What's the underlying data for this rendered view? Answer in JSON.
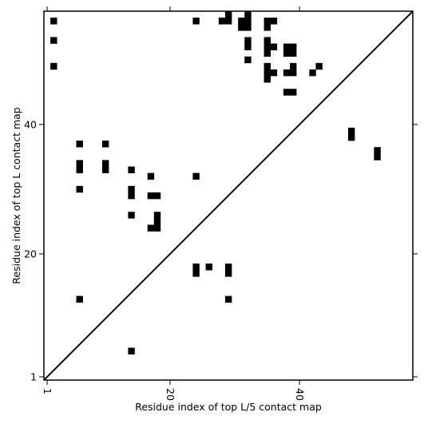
{
  "chart_data": {
    "type": "heatmap",
    "subtype": "contact-map",
    "xlabel": "Residue index of top L/5 contact map",
    "ylabel": "Residue index of top L contact map",
    "xlim": [
      0.5,
      57.5
    ],
    "ylim": [
      0.5,
      57.5
    ],
    "xticks": [
      1,
      20,
      40
    ],
    "yticks": [
      1,
      20,
      40
    ],
    "diagonal": true,
    "grid": false,
    "legend": "none",
    "cell_color": "#000000",
    "upper_triangle_contacts": [
      [
        24,
        56
      ],
      [
        28,
        56
      ],
      [
        29,
        56
      ],
      [
        29,
        57
      ],
      [
        31,
        55
      ],
      [
        31,
        56
      ],
      [
        32,
        55
      ],
      [
        32,
        56
      ],
      [
        32,
        57
      ],
      [
        35,
        55
      ],
      [
        35,
        56
      ],
      [
        36,
        56
      ],
      [
        32,
        52
      ],
      [
        32,
        53
      ],
      [
        35,
        51
      ],
      [
        35,
        52
      ],
      [
        35,
        53
      ],
      [
        36,
        52
      ],
      [
        38,
        51
      ],
      [
        38,
        52
      ],
      [
        39,
        51
      ],
      [
        39,
        52
      ],
      [
        32,
        50
      ],
      [
        35,
        47
      ],
      [
        35,
        48
      ],
      [
        35,
        49
      ],
      [
        36,
        48
      ],
      [
        38,
        48
      ],
      [
        39,
        48
      ],
      [
        39,
        49
      ],
      [
        42,
        48
      ],
      [
        43,
        49
      ],
      [
        38,
        45
      ],
      [
        39,
        45
      ]
    ],
    "lower_triangle_contacts": [
      [
        2,
        56
      ],
      [
        2,
        53
      ],
      [
        2,
        49
      ],
      [
        6,
        37
      ],
      [
        10,
        37
      ],
      [
        6,
        34
      ],
      [
        6,
        33
      ],
      [
        10,
        34
      ],
      [
        10,
        33
      ],
      [
        14,
        33
      ],
      [
        17,
        32
      ],
      [
        24,
        32
      ],
      [
        6,
        30
      ],
      [
        14,
        30
      ],
      [
        14,
        29
      ],
      [
        17,
        29
      ],
      [
        18,
        29
      ],
      [
        14,
        26
      ],
      [
        18,
        26
      ],
      [
        18,
        25
      ],
      [
        17,
        24
      ],
      [
        18,
        24
      ],
      [
        24,
        18
      ],
      [
        24,
        17
      ],
      [
        26,
        18
      ],
      [
        29,
        18
      ],
      [
        29,
        17
      ],
      [
        6,
        13
      ],
      [
        29,
        13
      ],
      [
        14,
        5
      ],
      [
        48,
        39
      ],
      [
        48,
        38
      ],
      [
        52,
        36
      ],
      [
        52,
        35
      ]
    ]
  }
}
